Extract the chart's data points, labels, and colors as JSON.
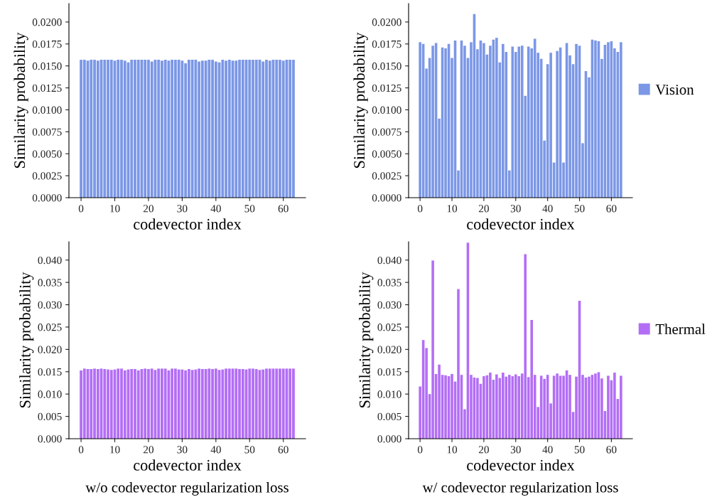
{
  "chart_data": [
    {
      "type": "bar",
      "xlabel": "codevector index",
      "ylabel": "Similarity probability",
      "x": [
        0,
        1,
        2,
        3,
        4,
        5,
        6,
        7,
        8,
        9,
        10,
        11,
        12,
        13,
        14,
        15,
        16,
        17,
        18,
        19,
        20,
        21,
        22,
        23,
        24,
        25,
        26,
        27,
        28,
        29,
        30,
        31,
        32,
        33,
        34,
        35,
        36,
        37,
        38,
        39,
        40,
        41,
        42,
        43,
        44,
        45,
        46,
        47,
        48,
        49,
        50,
        51,
        52,
        53,
        54,
        55,
        56,
        57,
        58,
        59,
        60,
        61,
        62,
        63
      ],
      "xlim": [
        -3.6,
        66.6
      ],
      "xticks": [
        0,
        10,
        20,
        30,
        40,
        50,
        60
      ],
      "ylim": [
        0,
        0.0221
      ],
      "yticks": [
        {
          "value": 0,
          "label": "0.0000"
        },
        {
          "value": 0.0025,
          "label": "0.0025"
        },
        {
          "value": 0.005,
          "label": "0.0050"
        },
        {
          "value": 0.0075,
          "label": "0.0075"
        },
        {
          "value": 0.01,
          "label": "0.0100"
        },
        {
          "value": 0.0125,
          "label": "0.0125"
        },
        {
          "value": 0.015,
          "label": "0.0150"
        },
        {
          "value": 0.0175,
          "label": "0.0175"
        },
        {
          "value": 0.02,
          "label": "0.0200"
        }
      ],
      "grid": false,
      "series": [
        {
          "color": "#7b97e6",
          "values": [
            0.0157,
            0.0157,
            0.0156,
            0.0157,
            0.0157,
            0.0156,
            0.0157,
            0.0157,
            0.0157,
            0.0157,
            0.0156,
            0.0157,
            0.0157,
            0.0156,
            0.0154,
            0.0157,
            0.0157,
            0.0157,
            0.0157,
            0.0157,
            0.0157,
            0.0155,
            0.0157,
            0.0157,
            0.0156,
            0.0157,
            0.0156,
            0.0157,
            0.0157,
            0.0157,
            0.0156,
            0.0153,
            0.0157,
            0.0157,
            0.0157,
            0.0155,
            0.0156,
            0.0156,
            0.0157,
            0.0157,
            0.0155,
            0.0154,
            0.0157,
            0.0156,
            0.0157,
            0.0156,
            0.0156,
            0.0157,
            0.0157,
            0.0157,
            0.0157,
            0.0157,
            0.0157,
            0.0157,
            0.0155,
            0.0157,
            0.0156,
            0.0157,
            0.0157,
            0.0157,
            0.0156,
            0.0157,
            0.0157,
            0.0157
          ]
        }
      ]
    },
    {
      "type": "bar",
      "xlabel": "codevector index",
      "ylabel": "Similarity probability",
      "x": [
        0,
        1,
        2,
        3,
        4,
        5,
        6,
        7,
        8,
        9,
        10,
        11,
        12,
        13,
        14,
        15,
        16,
        17,
        18,
        19,
        20,
        21,
        22,
        23,
        24,
        25,
        26,
        27,
        28,
        29,
        30,
        31,
        32,
        33,
        34,
        35,
        36,
        37,
        38,
        39,
        40,
        41,
        42,
        43,
        44,
        45,
        46,
        47,
        48,
        49,
        50,
        51,
        52,
        53,
        54,
        55,
        56,
        57,
        58,
        59,
        60,
        61,
        62,
        63
      ],
      "xlim": [
        -3.6,
        66.6
      ],
      "xticks": [
        0,
        10,
        20,
        30,
        40,
        50,
        60
      ],
      "ylim": [
        0,
        0.0221
      ],
      "yticks": [
        {
          "value": 0,
          "label": "0.0000"
        },
        {
          "value": 0.0025,
          "label": "0.0025"
        },
        {
          "value": 0.005,
          "label": "0.0050"
        },
        {
          "value": 0.0075,
          "label": "0.0075"
        },
        {
          "value": 0.01,
          "label": "0.0100"
        },
        {
          "value": 0.0125,
          "label": "0.0125"
        },
        {
          "value": 0.015,
          "label": "0.0150"
        },
        {
          "value": 0.0175,
          "label": "0.0175"
        },
        {
          "value": 0.02,
          "label": "0.0200"
        }
      ],
      "grid": false,
      "legend": "right",
      "series": [
        {
          "name": "Vision",
          "color": "#7b97e6",
          "values": [
            0.0177,
            0.0175,
            0.0147,
            0.0159,
            0.0173,
            0.0176,
            0.009,
            0.0171,
            0.017,
            0.0175,
            0.0159,
            0.0179,
            0.0031,
            0.0179,
            0.0173,
            0.0159,
            0.0177,
            0.0209,
            0.0169,
            0.0179,
            0.0176,
            0.0163,
            0.0173,
            0.018,
            0.0182,
            0.0154,
            0.0175,
            0.0166,
            0.0031,
            0.0172,
            0.0166,
            0.0172,
            0.0173,
            0.0116,
            0.0172,
            0.017,
            0.0181,
            0.0165,
            0.0158,
            0.0065,
            0.0152,
            0.0165,
            0.004,
            0.0167,
            0.0171,
            0.004,
            0.0176,
            0.0162,
            0.0152,
            0.0175,
            0.0173,
            0.0062,
            0.0144,
            0.0137,
            0.018,
            0.0179,
            0.0178,
            0.0158,
            0.0174,
            0.0177,
            0.0178,
            0.017,
            0.0166,
            0.0177
          ]
        }
      ]
    },
    {
      "type": "bar",
      "xlabel": "codevector index",
      "ylabel": "Similarity probability",
      "x": [
        0,
        1,
        2,
        3,
        4,
        5,
        6,
        7,
        8,
        9,
        10,
        11,
        12,
        13,
        14,
        15,
        16,
        17,
        18,
        19,
        20,
        21,
        22,
        23,
        24,
        25,
        26,
        27,
        28,
        29,
        30,
        31,
        32,
        33,
        34,
        35,
        36,
        37,
        38,
        39,
        40,
        41,
        42,
        43,
        44,
        45,
        46,
        47,
        48,
        49,
        50,
        51,
        52,
        53,
        54,
        55,
        56,
        57,
        58,
        59,
        60,
        61,
        62,
        63
      ],
      "xlim": [
        -3.6,
        66.6
      ],
      "xticks": [
        0,
        10,
        20,
        30,
        40,
        50,
        60
      ],
      "ylim": [
        0,
        0.0441
      ],
      "yticks": [
        {
          "value": 0,
          "label": "0.000"
        },
        {
          "value": 0.005,
          "label": "0.005"
        },
        {
          "value": 0.01,
          "label": "0.010"
        },
        {
          "value": 0.015,
          "label": "0.015"
        },
        {
          "value": 0.02,
          "label": "0.020"
        },
        {
          "value": 0.025,
          "label": "0.025"
        },
        {
          "value": 0.03,
          "label": "0.030"
        },
        {
          "value": 0.035,
          "label": "0.035"
        },
        {
          "value": 0.04,
          "label": "0.040"
        }
      ],
      "grid": false,
      "annotations": [
        "w/o codevector regularization loss"
      ],
      "series": [
        {
          "color": "#b36ef5",
          "values": [
            0.0153,
            0.0157,
            0.0156,
            0.0156,
            0.0157,
            0.0156,
            0.0157,
            0.0156,
            0.0155,
            0.0154,
            0.0155,
            0.0157,
            0.0157,
            0.0153,
            0.0155,
            0.0156,
            0.0156,
            0.0153,
            0.0156,
            0.0157,
            0.0156,
            0.0157,
            0.0154,
            0.0157,
            0.0157,
            0.0157,
            0.0153,
            0.0157,
            0.0157,
            0.0155,
            0.0155,
            0.0153,
            0.0156,
            0.0154,
            0.0155,
            0.0157,
            0.0156,
            0.0156,
            0.0157,
            0.0156,
            0.0157,
            0.0154,
            0.0155,
            0.0157,
            0.0157,
            0.0157,
            0.0157,
            0.0156,
            0.0156,
            0.0155,
            0.0157,
            0.0157,
            0.0156,
            0.0154,
            0.0155,
            0.0157,
            0.0157,
            0.0157,
            0.0157,
            0.0157,
            0.0157,
            0.0157,
            0.0157,
            0.0157
          ]
        }
      ]
    },
    {
      "type": "bar",
      "xlabel": "codevector index",
      "ylabel": "Similarity probability",
      "x": [
        0,
        1,
        2,
        3,
        4,
        5,
        6,
        7,
        8,
        9,
        10,
        11,
        12,
        13,
        14,
        15,
        16,
        17,
        18,
        19,
        20,
        21,
        22,
        23,
        24,
        25,
        26,
        27,
        28,
        29,
        30,
        31,
        32,
        33,
        34,
        35,
        36,
        37,
        38,
        39,
        40,
        41,
        42,
        43,
        44,
        45,
        46,
        47,
        48,
        49,
        50,
        51,
        52,
        53,
        54,
        55,
        56,
        57,
        58,
        59,
        60,
        61,
        62,
        63
      ],
      "xlim": [
        -3.6,
        66.6
      ],
      "xticks": [
        0,
        10,
        20,
        30,
        40,
        50,
        60
      ],
      "ylim": [
        0,
        0.0441
      ],
      "yticks": [
        {
          "value": 0,
          "label": "0.000"
        },
        {
          "value": 0.005,
          "label": "0.005"
        },
        {
          "value": 0.01,
          "label": "0.010"
        },
        {
          "value": 0.015,
          "label": "0.015"
        },
        {
          "value": 0.02,
          "label": "0.020"
        },
        {
          "value": 0.025,
          "label": "0.025"
        },
        {
          "value": 0.03,
          "label": "0.030"
        },
        {
          "value": 0.035,
          "label": "0.035"
        },
        {
          "value": 0.04,
          "label": "0.040"
        }
      ],
      "grid": false,
      "legend": "right",
      "annotations": [
        "w/ codevector regularization loss"
      ],
      "series": [
        {
          "name": "Thermal",
          "color": "#b36ef5",
          "values": [
            0.0117,
            0.0221,
            0.0203,
            0.01,
            0.0399,
            0.0145,
            0.0166,
            0.0143,
            0.0142,
            0.014,
            0.0145,
            0.0128,
            0.0335,
            0.0143,
            0.0066,
            0.0439,
            0.0143,
            0.0137,
            0.0136,
            0.0123,
            0.014,
            0.0142,
            0.0148,
            0.0132,
            0.0144,
            0.0136,
            0.0148,
            0.0139,
            0.0143,
            0.014,
            0.0144,
            0.014,
            0.0146,
            0.0413,
            0.0138,
            0.0266,
            0.0143,
            0.0071,
            0.0141,
            0.0134,
            0.0143,
            0.0079,
            0.0141,
            0.0146,
            0.0141,
            0.0141,
            0.0153,
            0.0143,
            0.006,
            0.0139,
            0.0309,
            0.0143,
            0.0137,
            0.0139,
            0.0143,
            0.0146,
            0.0149,
            0.0135,
            0.0062,
            0.0141,
            0.0131,
            0.0148,
            0.0089,
            0.0141
          ]
        }
      ]
    }
  ]
}
